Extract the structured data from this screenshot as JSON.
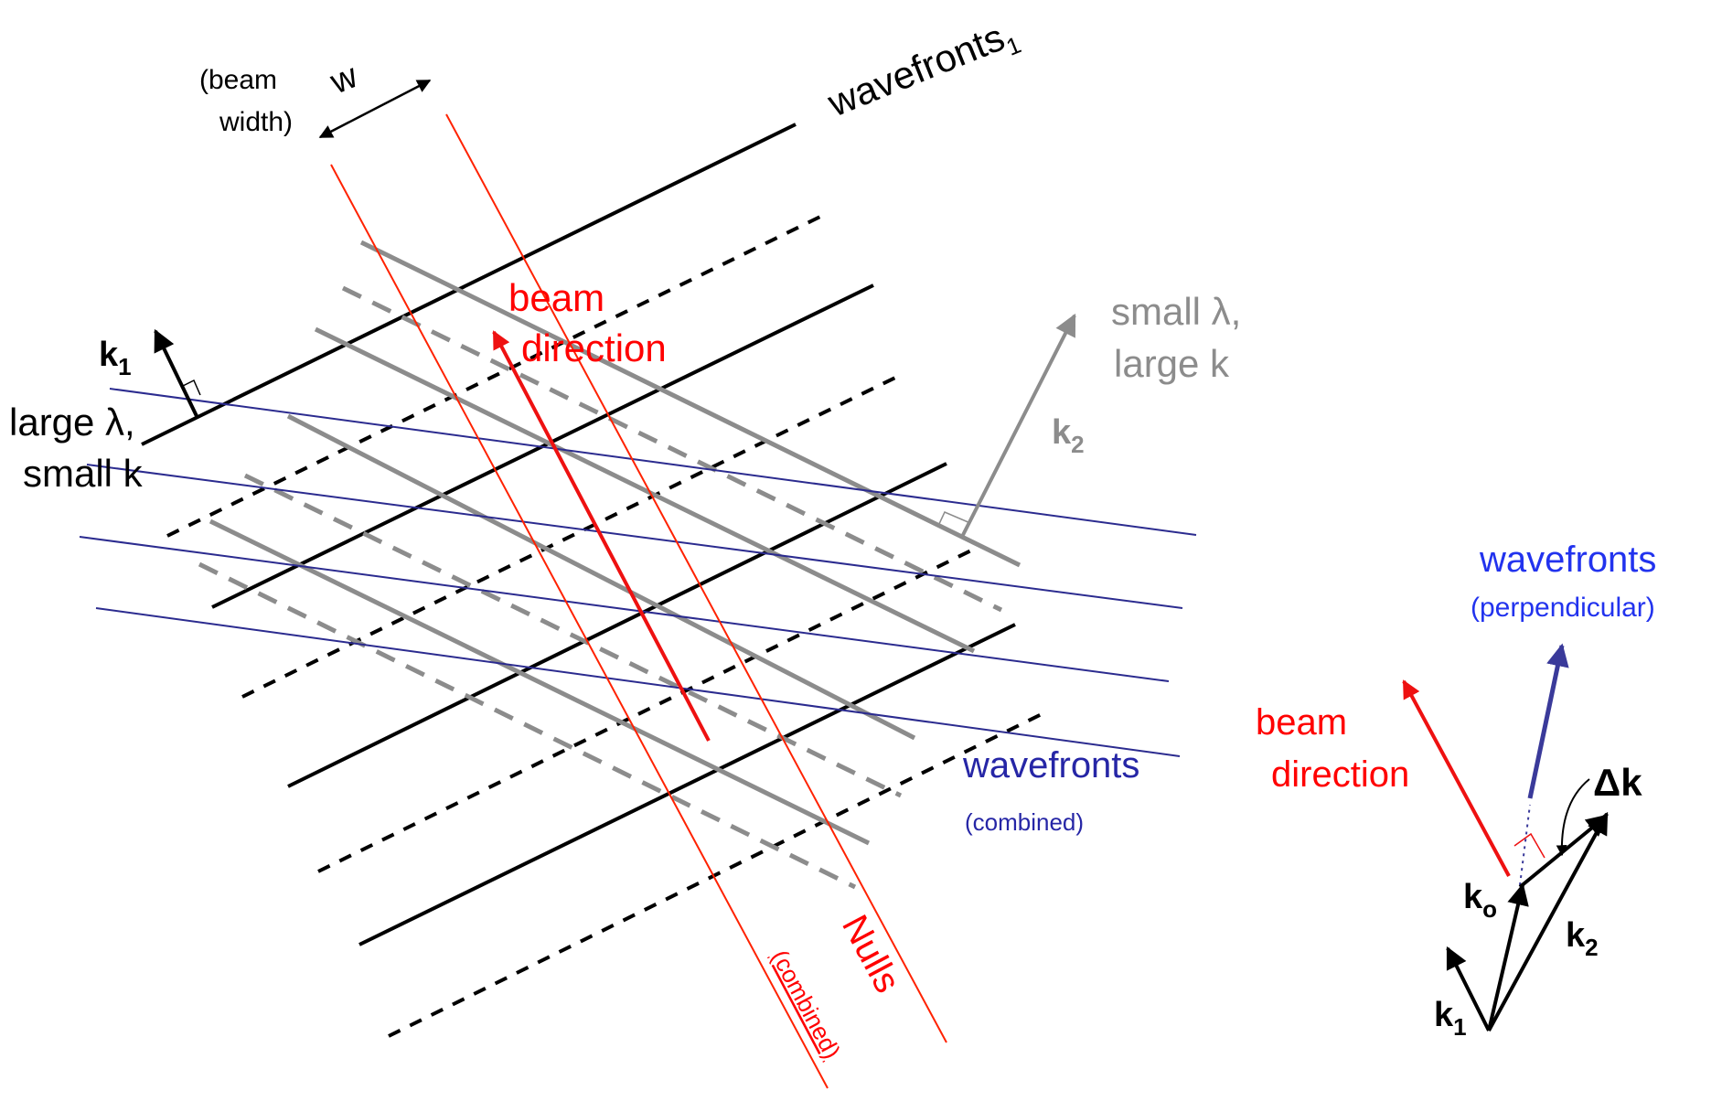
{
  "labels": {
    "wavefronts1": {
      "text": "wavefronts",
      "sub": "1"
    },
    "beam_width_1": "(beam",
    "beam_width_2": "width)",
    "w": "w",
    "beam_direction_1": "beam",
    "beam_direction_2": "direction",
    "small_lambda": "small λ,",
    "large_k": "large k",
    "k2_main": {
      "text": "k",
      "sub": "2"
    },
    "k1_main": {
      "text": "k",
      "sub": "1"
    },
    "large_lambda": "large λ,",
    "small_k": "small k",
    "wavefronts_combined": "wavefronts",
    "combined_small": "(combined)",
    "nulls": "Nulls",
    "nulls_combined": "(combined)",
    "wavefronts_perp": "wavefronts",
    "perpendicular": "(perpendicular)",
    "beam_direction_right_1": "beam",
    "beam_direction_right_2": "direction",
    "delta_k": "Δk",
    "k_o": {
      "text": "k",
      "sub": "o"
    },
    "k2_vec": {
      "text": "k",
      "sub": "2"
    },
    "k1_vec": {
      "text": "k",
      "sub": "1"
    }
  },
  "colors": {
    "black_wavefronts": "#000000",
    "gray_wavefronts": "#8c8c8c",
    "combined_wavefronts": "#2b2b8f",
    "nulls": "#ff2200",
    "beam": "#ee1111",
    "gray_text": "#8c8c8c",
    "blue_text": "#2626a6",
    "bright_blue_text": "#2233ee",
    "red_text": "#ff0000"
  }
}
